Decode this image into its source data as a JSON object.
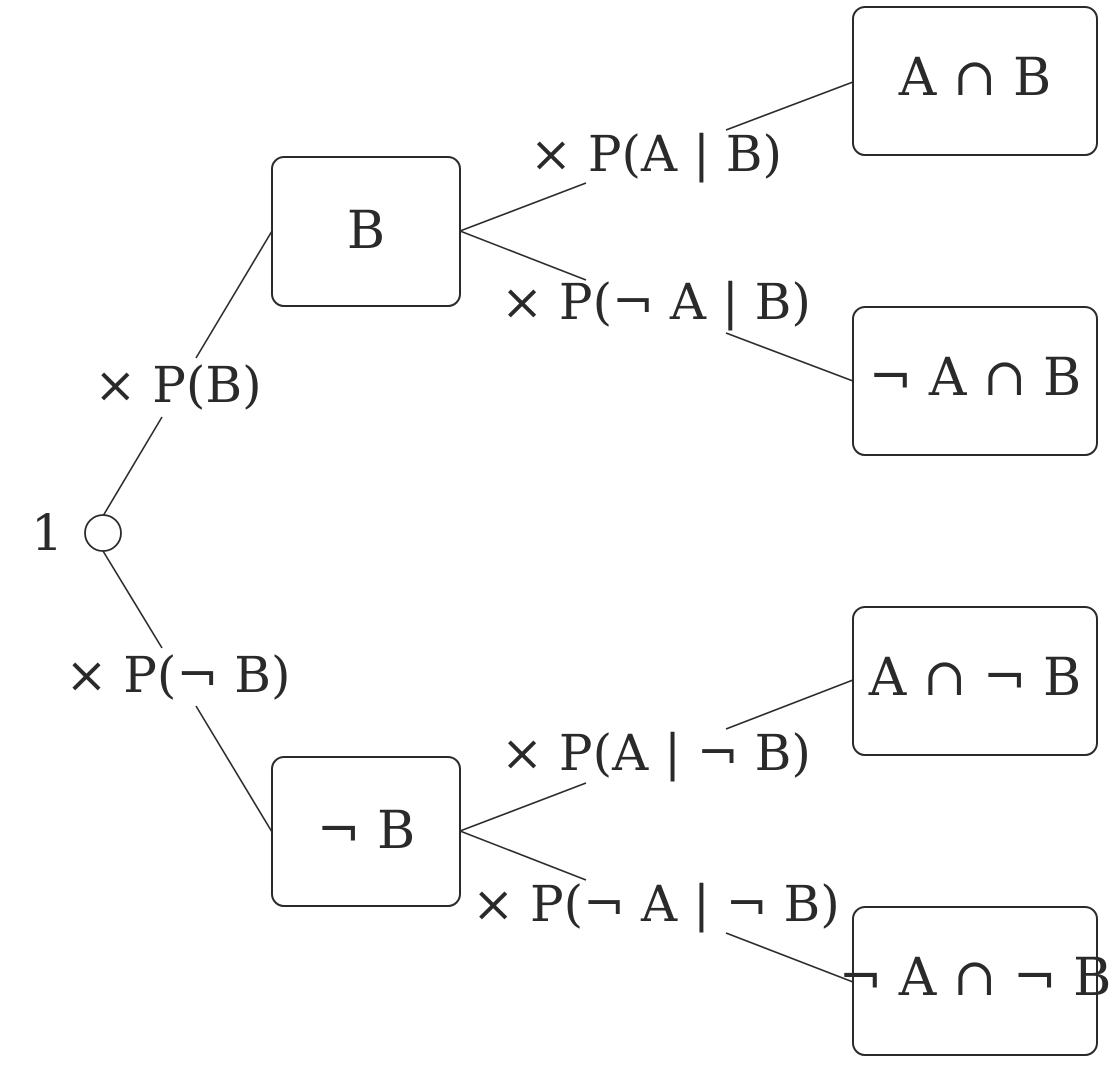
{
  "root": {
    "label": "1"
  },
  "nodes": {
    "b": "B",
    "not_b": "¬ B",
    "a_and_b": "A ∩ B",
    "not_a_and_b": "¬ A ∩ B",
    "a_and_not_b": "A ∩ ¬ B",
    "not_a_and_not_b": "¬ A ∩ ¬ B"
  },
  "edges": {
    "root_to_b": "× P(B)",
    "root_to_not_b": "× P(¬ B)",
    "b_to_a_and_b": "× P(A | B)",
    "b_to_not_a_and_b": "× P(¬ A | B)",
    "not_b_to_a_and_not_b": "× P(A | ¬ B)",
    "not_b_to_not_a_and_not_b": "× P(¬ A | ¬ B)"
  }
}
